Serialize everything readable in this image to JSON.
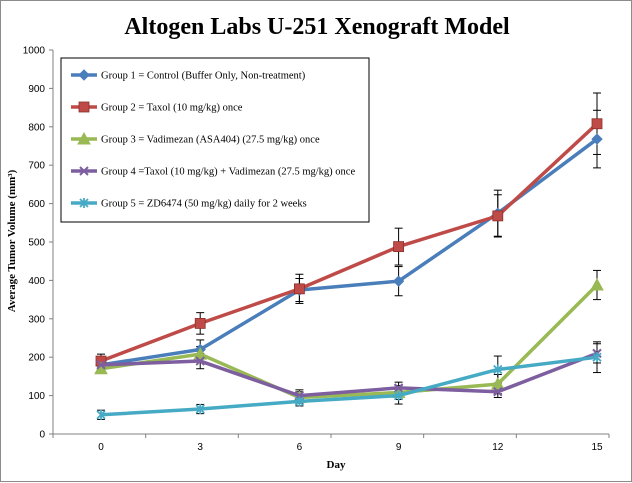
{
  "chart_data": {
    "type": "line",
    "title": "Altogen Labs U-251 Xenograft Model",
    "xlabel": "Day",
    "ylabel": "Average Tumor Volume (mm³)",
    "x": [
      0,
      3,
      6,
      9,
      12,
      15
    ],
    "xlim": [
      0,
      15
    ],
    "ylim": [
      0,
      1000
    ],
    "yticks": [
      0,
      100,
      200,
      300,
      400,
      500,
      600,
      700,
      800,
      900,
      1000
    ],
    "grid": false,
    "legend_position": "top-left",
    "series": [
      {
        "name": "Group 1 = Control (Buffer Only, Non-treatment)",
        "color": "#4a7ebb",
        "marker": "diamond",
        "values": [
          180,
          220,
          375,
          398,
          575,
          768
        ],
        "errors": [
          20,
          25,
          30,
          38,
          60,
          75
        ]
      },
      {
        "name": "Group 2 = Taxol (10 mg/kg) once",
        "color": "#be4b48",
        "marker": "square",
        "values": [
          190,
          288,
          378,
          488,
          568,
          808
        ],
        "errors": [
          18,
          28,
          38,
          48,
          55,
          80
        ]
      },
      {
        "name": "Group 3 = Vadimezan (ASA404) (27.5 mg/kg) once",
        "color": "#98b954",
        "marker": "triangle",
        "values": [
          170,
          208,
          95,
          108,
          130,
          388
        ],
        "errors": [
          12,
          20,
          15,
          18,
          25,
          38
        ]
      },
      {
        "name": "Group 4 =Taxol (10 mg/kg) + Vadimezan (27.5 mg/kg) once",
        "color": "#7d5fa0",
        "marker": "cross",
        "values": [
          180,
          190,
          100,
          120,
          110,
          210
        ],
        "errors": [
          15,
          20,
          15,
          15,
          15,
          25
        ]
      },
      {
        "name": "Group 5 =  ZD6474 (50 mg/kg) daily  for 2 weeks",
        "color": "#46aac5",
        "marker": "star",
        "values": [
          50,
          65,
          85,
          100,
          168,
          200
        ],
        "errors": [
          12,
          12,
          12,
          22,
          35,
          40
        ]
      }
    ]
  }
}
